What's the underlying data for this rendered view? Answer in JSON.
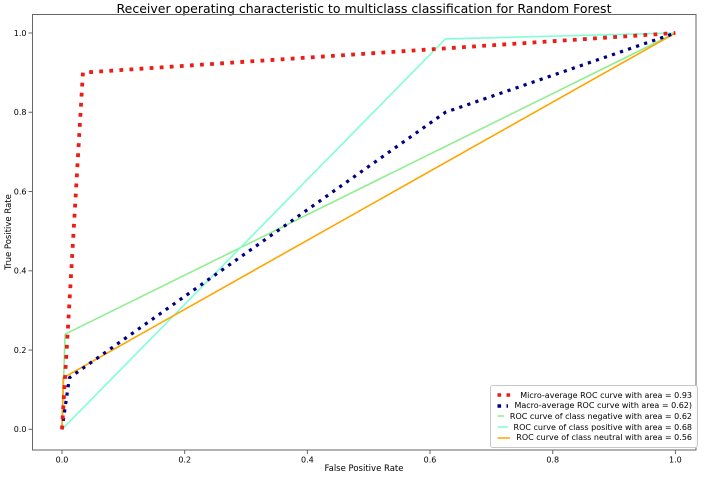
{
  "chart_data": {
    "type": "line",
    "title": "Receiver operating characteristic to multiclass classification for Random Forest",
    "xlabel": "False Positive Rate",
    "ylabel": "True Positive Rate",
    "xlim": [
      0,
      1
    ],
    "ylim": [
      0,
      1
    ],
    "x_ticks": [
      "0.0",
      "0.2",
      "0.4",
      "0.6",
      "0.8",
      "1.0"
    ],
    "y_ticks": [
      "0.0",
      "0.2",
      "0.4",
      "0.6",
      "0.8",
      "1.0"
    ],
    "grid": false,
    "legend_position": "lower right",
    "series": [
      {
        "name": "class-negative",
        "label": "ROC curve of class negative with area = 0.62",
        "color": "#90ee90",
        "style": "solid",
        "line_width": 1.6,
        "area": 0.62,
        "points": [
          [
            0,
            0
          ],
          [
            0.005,
            0.24
          ],
          [
            1,
            1
          ]
        ]
      },
      {
        "name": "class-positive",
        "label": "ROC curve of class positive with area = 0.68",
        "color": "#7fffd4",
        "style": "solid",
        "line_width": 1.6,
        "area": 0.68,
        "points": [
          [
            0,
            0
          ],
          [
            0.625,
            0.985
          ],
          [
            1,
            1
          ]
        ]
      },
      {
        "name": "class-neutral",
        "label": "ROC curve of class neutral with area = 0.56",
        "color": "#ffa500",
        "style": "solid",
        "line_width": 1.6,
        "area": 0.56,
        "points": [
          [
            0,
            0
          ],
          [
            0.002,
            0.13
          ],
          [
            1,
            1
          ]
        ]
      },
      {
        "name": "macro-average",
        "label": "Macro-average ROC curve with area = 0.62)",
        "color": "#000080",
        "style": "dotted",
        "line_width": 3.2,
        "area": 0.62,
        "points": [
          [
            0,
            0
          ],
          [
            0.012,
            0.13
          ],
          [
            0.625,
            0.8
          ],
          [
            1,
            1
          ]
        ]
      },
      {
        "name": "micro-average",
        "label": "Micro-average ROC curve with area = 0.93",
        "color": "#ee1c16",
        "style": "dotted",
        "line_width": 3.8,
        "area": 0.93,
        "points": [
          [
            0,
            0
          ],
          [
            0.034,
            0.9
          ],
          [
            1,
            1
          ]
        ]
      }
    ],
    "legend_order": [
      "micro-average",
      "macro-average",
      "class-negative",
      "class-positive",
      "class-neutral"
    ]
  }
}
